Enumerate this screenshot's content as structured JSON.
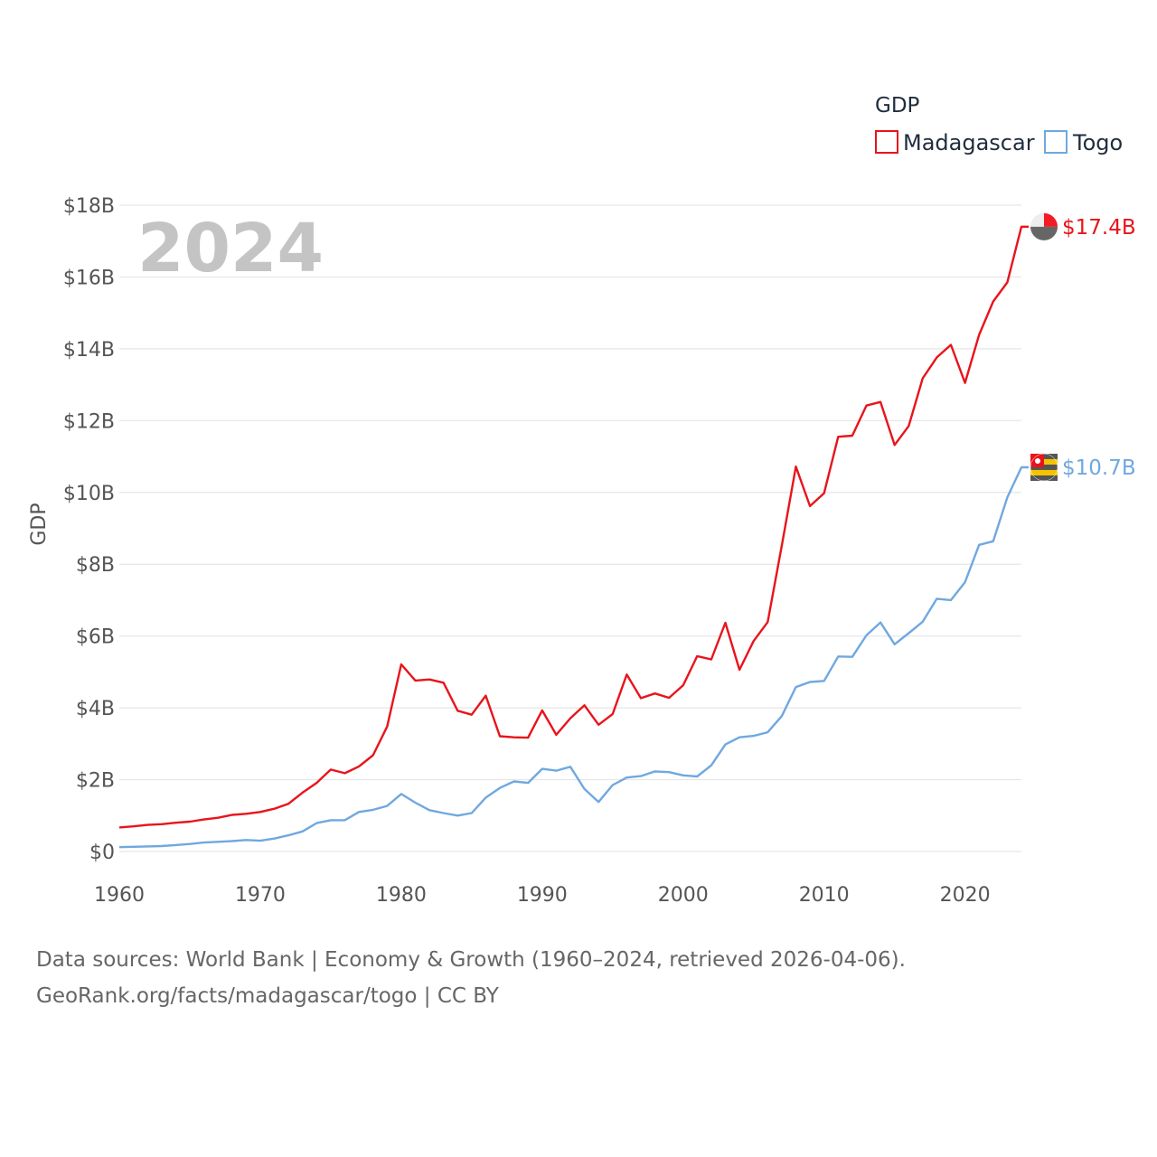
{
  "chart_data": {
    "type": "line",
    "legend_title": "GDP",
    "ylabel": "GDP",
    "year_label": "2024",
    "ylim": [
      0,
      18
    ],
    "xlim": [
      1960,
      2024
    ],
    "y_ticks": [
      {
        "value": 0,
        "label": "$0"
      },
      {
        "value": 2,
        "label": "$2B"
      },
      {
        "value": 4,
        "label": "$4B"
      },
      {
        "value": 6,
        "label": "$6B"
      },
      {
        "value": 8,
        "label": "$8B"
      },
      {
        "value": 10,
        "label": "$10B"
      },
      {
        "value": 12,
        "label": "$12B"
      },
      {
        "value": 14,
        "label": "$14B"
      },
      {
        "value": 16,
        "label": "$16B"
      },
      {
        "value": 18,
        "label": "$18B"
      }
    ],
    "x_ticks": [
      {
        "value": 1960,
        "label": "1960"
      },
      {
        "value": 1970,
        "label": "1970"
      },
      {
        "value": 1980,
        "label": "1980"
      },
      {
        "value": 1990,
        "label": "1990"
      },
      {
        "value": 2000,
        "label": "2000"
      },
      {
        "value": 2010,
        "label": "2010"
      },
      {
        "value": 2020,
        "label": "2020"
      }
    ],
    "start_year": 1960,
    "series": [
      {
        "name": "Madagascar",
        "color": "#e8141b",
        "end_label": "$17.4B",
        "values": [
          0.67,
          0.7,
          0.74,
          0.76,
          0.8,
          0.83,
          0.89,
          0.94,
          1.02,
          1.05,
          1.1,
          1.19,
          1.33,
          1.64,
          1.91,
          2.28,
          2.18,
          2.37,
          2.68,
          3.48,
          5.21,
          4.76,
          4.79,
          4.7,
          3.92,
          3.81,
          4.34,
          3.21,
          3.18,
          3.17,
          3.93,
          3.25,
          3.71,
          4.07,
          3.53,
          3.83,
          4.93,
          4.27,
          4.4,
          4.28,
          4.63,
          5.44,
          5.35,
          6.37,
          5.06,
          5.86,
          6.39,
          8.52,
          10.72,
          9.62,
          9.98,
          11.55,
          11.58,
          12.42,
          12.52,
          11.32,
          11.85,
          13.18,
          13.76,
          14.11,
          13.05,
          14.39,
          15.32,
          15.85,
          17.4
        ]
      },
      {
        "name": "Togo",
        "color": "#6fa8e0",
        "end_label": "$10.7B",
        "values": [
          0.12,
          0.13,
          0.14,
          0.15,
          0.18,
          0.21,
          0.25,
          0.27,
          0.29,
          0.32,
          0.3,
          0.36,
          0.45,
          0.56,
          0.79,
          0.87,
          0.87,
          1.1,
          1.16,
          1.27,
          1.6,
          1.36,
          1.15,
          1.07,
          1.0,
          1.07,
          1.5,
          1.77,
          1.95,
          1.91,
          2.3,
          2.25,
          2.36,
          1.74,
          1.38,
          1.85,
          2.06,
          2.1,
          2.23,
          2.21,
          2.12,
          2.09,
          2.4,
          2.98,
          3.18,
          3.22,
          3.32,
          3.77,
          4.58,
          4.72,
          4.75,
          5.43,
          5.42,
          6.02,
          6.38,
          5.77,
          6.08,
          6.4,
          7.04,
          7.0,
          7.5,
          8.54,
          8.64,
          9.86,
          10.7
        ]
      }
    ]
  },
  "footer": {
    "line1": "Data sources: World Bank | Economy & Growth (1960–2024, retrieved 2026-04-06).",
    "line2": "GeoRank.org/facts/madagascar/togo | CC BY"
  }
}
